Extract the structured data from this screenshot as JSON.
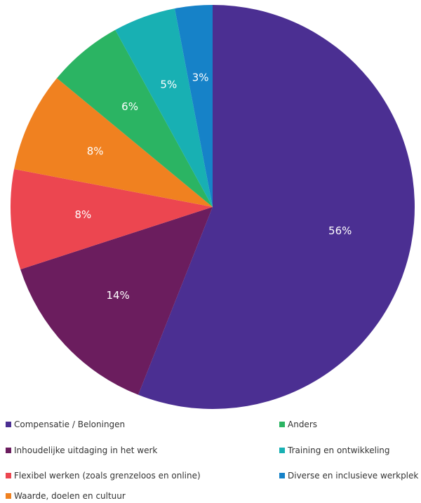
{
  "chart_data": {
    "type": "pie",
    "start_angle_deg": 0,
    "direction": "clockwise",
    "slices": [
      {
        "label": "Compensatie / Beloningen",
        "value": 56,
        "display": "56%",
        "color": "#4b2f92"
      },
      {
        "label": "Inhoudelijke uitdaging in het werk",
        "value": 14,
        "display": "14%",
        "color": "#6b1d5e"
      },
      {
        "label": "Flexibel werken (zoals grenzeloos en online)",
        "value": 8,
        "display": "8%",
        "color": "#ec4650"
      },
      {
        "label": "Waarde, doelen en cultuur",
        "value": 8,
        "display": "8%",
        "color": "#f08120"
      },
      {
        "label": "Anders",
        "value": 6,
        "display": "6%",
        "color": "#2bb463"
      },
      {
        "label": "Training en ontwikkeling",
        "value": 5,
        "display": "5%",
        "color": "#18b0b3"
      },
      {
        "label": "Diverse en inclusieve werkplek",
        "value": 3,
        "display": "3%",
        "color": "#1682c8"
      }
    ],
    "legend_position": "bottom"
  }
}
